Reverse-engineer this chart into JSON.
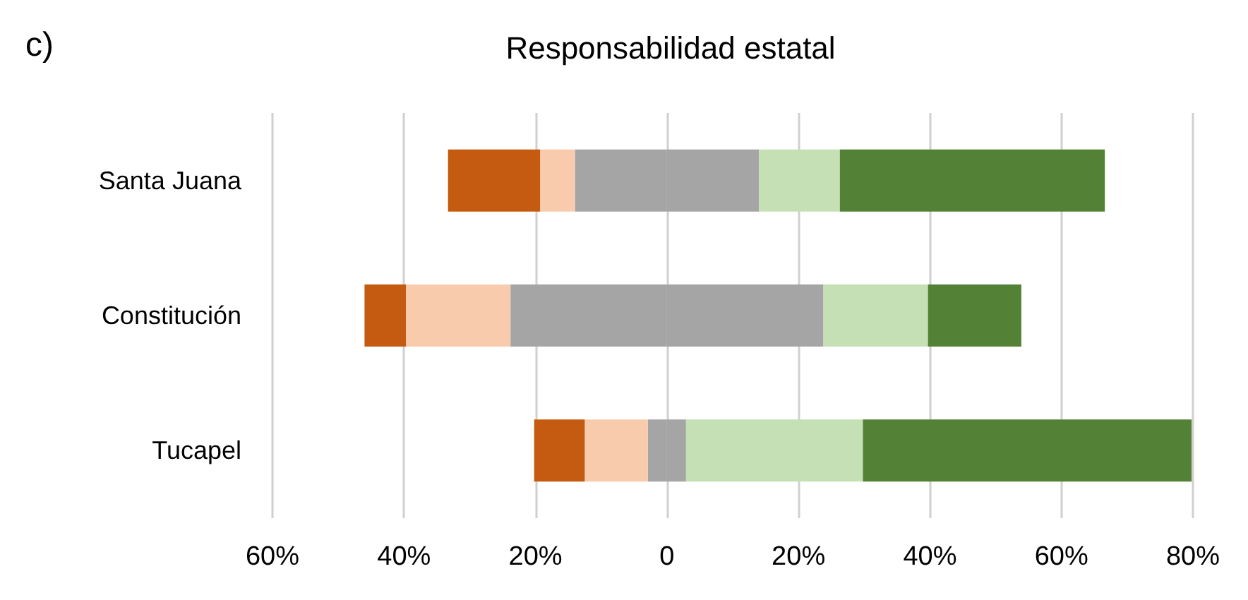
{
  "chart_data": {
    "type": "bar",
    "orientation": "horizontal",
    "stacked": true,
    "title": "Responsabilidad estatal",
    "annotations": [
      "c)"
    ],
    "categories": [
      "Santa Juana",
      "Constitución",
      "Tucapel"
    ],
    "series": [
      {
        "color": "#a5a5a5",
        "values": [
          -14,
          -23.8,
          -2.9
        ]
      },
      {
        "color": "#f8cbad",
        "values": [
          -5.3,
          -15.9,
          -9.6
        ]
      },
      {
        "color": "#c55a11",
        "values": [
          -14,
          -6.3,
          -7.7
        ]
      },
      {
        "color": "#a5a5a5",
        "values": [
          14,
          23.8,
          2.9
        ]
      },
      {
        "color": "#c5e0b4",
        "values": [
          12.3,
          15.9,
          26.9
        ]
      },
      {
        "color": "#538135",
        "values": [
          40.3,
          14.2,
          50
        ]
      }
    ],
    "xlim": [
      -60,
      80
    ],
    "xticks": [
      {
        "value": -60,
        "label": "60%"
      },
      {
        "value": -40,
        "label": "40%"
      },
      {
        "value": -20,
        "label": "20%"
      },
      0,
      {
        "value": 20,
        "label": "20%"
      },
      {
        "value": 40,
        "label": "40%"
      },
      {
        "value": 60,
        "label": "60%"
      },
      {
        "value": 80,
        "label": "80%"
      }
    ],
    "grid": "x"
  }
}
